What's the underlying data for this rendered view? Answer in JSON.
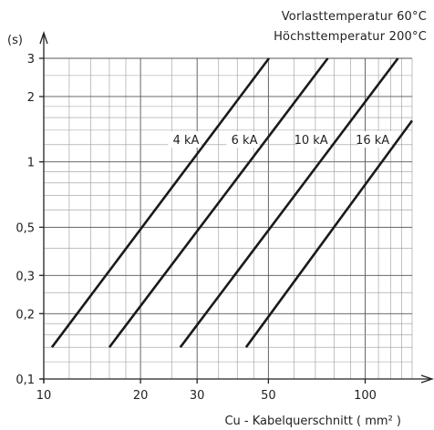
{
  "chart_data": {
    "type": "line",
    "title": "",
    "notes": [
      "Vorlasttemperatur 60°C",
      "Höchsttemperatur 200°C"
    ],
    "xlabel": "Cu - Kabelquerschnitt ( mm² )",
    "ylabel": "(s)",
    "x_scale": "log",
    "y_scale": "log",
    "xlim": [
      10,
      140
    ],
    "ylim": [
      0.1,
      3
    ],
    "x_ticks": [
      10,
      20,
      30,
      50,
      100
    ],
    "x_tick_labels": [
      "10",
      "20",
      "30",
      "50",
      "100"
    ],
    "y_ticks": [
      0.1,
      0.2,
      0.3,
      0.5,
      1,
      2,
      3
    ],
    "y_tick_labels": [
      "0,1",
      "0,2",
      "0,3",
      "0,5",
      "1",
      "2",
      "3"
    ],
    "grid": true,
    "series": [
      {
        "name": "4 kA",
        "points": [
          [
            10.6,
            0.14
          ],
          [
            50.2,
            3.0
          ]
        ]
      },
      {
        "name": "6 kA",
        "points": [
          [
            16.0,
            0.14
          ],
          [
            76.5,
            3.0
          ]
        ]
      },
      {
        "name": "10 kA",
        "points": [
          [
            26.6,
            0.14
          ],
          [
            126.5,
            3.0
          ]
        ]
      },
      {
        "name": "16 kA",
        "points": [
          [
            42.6,
            0.14
          ],
          [
            140,
            1.55
          ]
        ]
      }
    ]
  }
}
